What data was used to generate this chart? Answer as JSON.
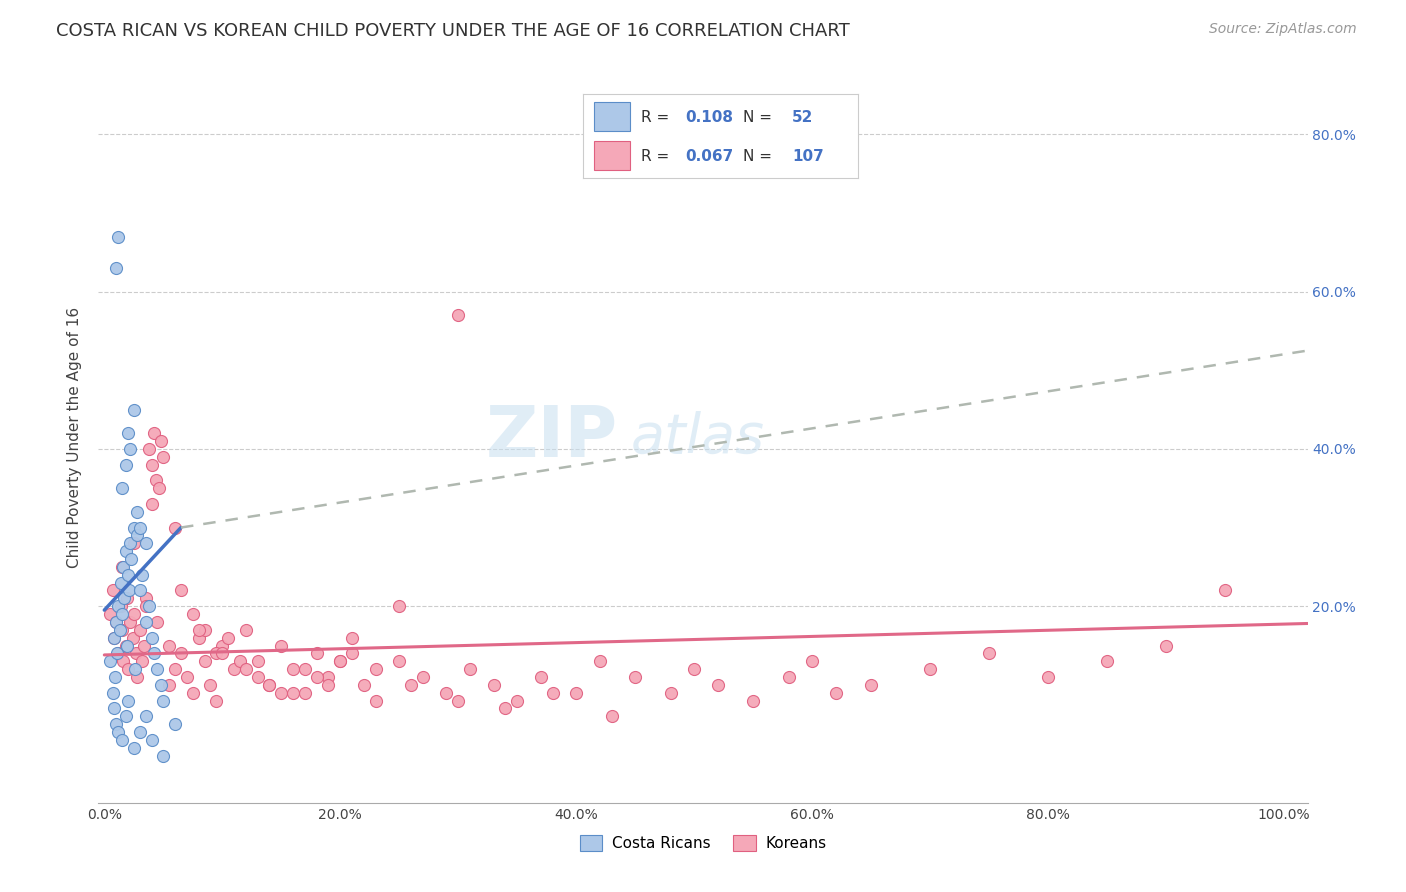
{
  "title": "COSTA RICAN VS KOREAN CHILD POVERTY UNDER THE AGE OF 16 CORRELATION CHART",
  "source": "Source: ZipAtlas.com",
  "ylabel": "Child Poverty Under the Age of 16",
  "xlim": [
    -0.005,
    1.02
  ],
  "ylim": [
    -0.05,
    0.88
  ],
  "xtick_labels": [
    "0.0%",
    "20.0%",
    "40.0%",
    "60.0%",
    "80.0%",
    "100.0%"
  ],
  "xtick_vals": [
    0.0,
    0.2,
    0.4,
    0.6,
    0.8,
    1.0
  ],
  "ytick_labels": [
    "20.0%",
    "40.0%",
    "60.0%",
    "80.0%"
  ],
  "ytick_vals": [
    0.2,
    0.4,
    0.6,
    0.8
  ],
  "legend_r_blue": "0.108",
  "legend_n_blue": "52",
  "legend_r_pink": "0.067",
  "legend_n_pink": "107",
  "blue_fill": "#adc8e8",
  "pink_fill": "#f5a8b8",
  "blue_edge": "#5b8dc8",
  "pink_edge": "#e06080",
  "blue_line": "#4472c4",
  "pink_line": "#e06888",
  "dash_line": "#b0b8b0",
  "title_fontsize": 13,
  "source_fontsize": 10,
  "ylabel_fontsize": 11,
  "costa_ricans_x": [
    0.005,
    0.007,
    0.008,
    0.009,
    0.01,
    0.011,
    0.012,
    0.013,
    0.014,
    0.015,
    0.016,
    0.017,
    0.018,
    0.019,
    0.02,
    0.021,
    0.022,
    0.023,
    0.025,
    0.026,
    0.028,
    0.03,
    0.032,
    0.035,
    0.038,
    0.04,
    0.042,
    0.045,
    0.048,
    0.05,
    0.01,
    0.012,
    0.015,
    0.018,
    0.02,
    0.022,
    0.025,
    0.028,
    0.03,
    0.035,
    0.008,
    0.01,
    0.012,
    0.015,
    0.018,
    0.02,
    0.025,
    0.03,
    0.035,
    0.04,
    0.05,
    0.06
  ],
  "costa_ricans_y": [
    0.13,
    0.09,
    0.16,
    0.11,
    0.18,
    0.14,
    0.2,
    0.17,
    0.23,
    0.19,
    0.25,
    0.21,
    0.27,
    0.15,
    0.24,
    0.22,
    0.28,
    0.26,
    0.3,
    0.12,
    0.29,
    0.22,
    0.24,
    0.18,
    0.2,
    0.16,
    0.14,
    0.12,
    0.1,
    0.08,
    0.63,
    0.67,
    0.35,
    0.38,
    0.42,
    0.4,
    0.45,
    0.32,
    0.3,
    0.28,
    0.07,
    0.05,
    0.04,
    0.03,
    0.06,
    0.08,
    0.02,
    0.04,
    0.06,
    0.03,
    0.01,
    0.05
  ],
  "koreans_x": [
    0.005,
    0.007,
    0.008,
    0.01,
    0.012,
    0.014,
    0.015,
    0.016,
    0.018,
    0.019,
    0.02,
    0.022,
    0.024,
    0.025,
    0.027,
    0.028,
    0.03,
    0.032,
    0.034,
    0.035,
    0.038,
    0.04,
    0.042,
    0.044,
    0.046,
    0.048,
    0.05,
    0.055,
    0.06,
    0.065,
    0.07,
    0.075,
    0.08,
    0.085,
    0.09,
    0.095,
    0.1,
    0.11,
    0.12,
    0.13,
    0.14,
    0.15,
    0.16,
    0.17,
    0.18,
    0.19,
    0.2,
    0.21,
    0.22,
    0.23,
    0.25,
    0.27,
    0.29,
    0.31,
    0.33,
    0.35,
    0.37,
    0.4,
    0.42,
    0.45,
    0.48,
    0.5,
    0.52,
    0.55,
    0.58,
    0.6,
    0.62,
    0.65,
    0.7,
    0.75,
    0.8,
    0.85,
    0.9,
    0.95,
    0.015,
    0.025,
    0.035,
    0.045,
    0.055,
    0.065,
    0.075,
    0.085,
    0.095,
    0.105,
    0.115,
    0.13,
    0.15,
    0.17,
    0.19,
    0.21,
    0.23,
    0.26,
    0.3,
    0.34,
    0.38,
    0.43,
    0.3,
    0.04,
    0.06,
    0.08,
    0.1,
    0.12,
    0.14,
    0.16,
    0.18,
    0.2,
    0.25
  ],
  "koreans_y": [
    0.19,
    0.22,
    0.16,
    0.18,
    0.14,
    0.2,
    0.17,
    0.13,
    0.15,
    0.21,
    0.12,
    0.18,
    0.16,
    0.19,
    0.14,
    0.11,
    0.17,
    0.13,
    0.15,
    0.21,
    0.4,
    0.38,
    0.42,
    0.36,
    0.35,
    0.41,
    0.39,
    0.1,
    0.12,
    0.14,
    0.11,
    0.09,
    0.16,
    0.13,
    0.1,
    0.08,
    0.15,
    0.12,
    0.17,
    0.13,
    0.1,
    0.15,
    0.12,
    0.09,
    0.14,
    0.11,
    0.13,
    0.16,
    0.1,
    0.08,
    0.13,
    0.11,
    0.09,
    0.12,
    0.1,
    0.08,
    0.11,
    0.09,
    0.13,
    0.11,
    0.09,
    0.12,
    0.1,
    0.08,
    0.11,
    0.13,
    0.09,
    0.1,
    0.12,
    0.14,
    0.11,
    0.13,
    0.15,
    0.22,
    0.25,
    0.28,
    0.2,
    0.18,
    0.15,
    0.22,
    0.19,
    0.17,
    0.14,
    0.16,
    0.13,
    0.11,
    0.09,
    0.12,
    0.1,
    0.14,
    0.12,
    0.1,
    0.08,
    0.07,
    0.09,
    0.06,
    0.57,
    0.33,
    0.3,
    0.17,
    0.14,
    0.12,
    0.1,
    0.09,
    0.11,
    0.13,
    0.2
  ],
  "blue_trend_x": [
    0.0,
    0.065
  ],
  "blue_trend_y": [
    0.195,
    0.3
  ],
  "dash_trend_x": [
    0.065,
    1.02
  ],
  "dash_trend_y": [
    0.3,
    0.525
  ],
  "pink_trend_x": [
    0.0,
    1.02
  ],
  "pink_trend_y": [
    0.138,
    0.178
  ]
}
